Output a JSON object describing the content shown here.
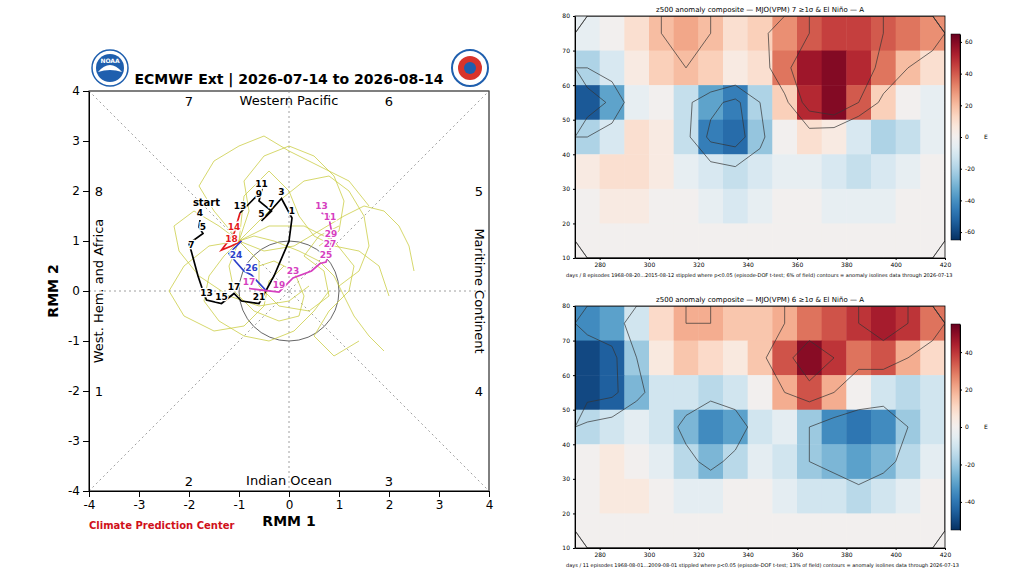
{
  "chart_data": [
    {
      "type": "line",
      "title": "ECMWF Ext | 2026-07-14 to 2026-08-14",
      "x_label": "RMM 1",
      "y_label": "RMM 2",
      "xlim": [
        -4,
        4
      ],
      "ylim": [
        -4,
        4
      ],
      "xticks": [
        -4,
        -3,
        -2,
        -1,
        0,
        1,
        2,
        3,
        4
      ],
      "yticks": [
        -4,
        -3,
        -2,
        -1,
        0,
        1,
        2,
        3,
        4
      ],
      "circle_radius": 1,
      "phase_labels": [
        "1",
        "2",
        "3",
        "4",
        "5",
        "6",
        "7",
        "8"
      ],
      "region_labels": {
        "top": "Western Pacific",
        "bottom": "Indian Ocean",
        "left": "West. Hem. and Africa",
        "right": "Maritime Continent"
      },
      "annotations": [
        {
          "text": "start",
          "x": -1.65,
          "y": 1.7
        }
      ],
      "credit": "Climate Prediction Center",
      "logo_text": "NOAA",
      "series": [
        {
          "color": "#c9cc3f",
          "x": [
            -1.0,
            -0.6,
            -0.2,
            0.3,
            0.8,
            1.2,
            1.5,
            1.6,
            1.4,
            1.0
          ],
          "values": [
            1.0,
            1.4,
            1.8,
            2.2,
            2.3,
            2.0,
            1.5,
            0.9,
            0.4,
            0.1
          ]
        },
        {
          "color": "#c9cc3f",
          "x": [
            -1.0,
            -1.3,
            -1.6,
            -1.7,
            -1.4,
            -0.9,
            -0.4,
            0.1,
            0.5,
            0.8
          ],
          "values": [
            1.0,
            0.7,
            0.3,
            -0.2,
            -0.6,
            -0.9,
            -1.0,
            -0.8,
            -0.4,
            0.0
          ]
        },
        {
          "color": "#c9cc3f",
          "x": [
            -1.0,
            -0.7,
            -0.3,
            0.2,
            0.6,
            0.9,
            1.1,
            1.3,
            1.6,
            1.9
          ],
          "values": [
            1.0,
            1.1,
            1.0,
            0.8,
            0.6,
            0.3,
            -0.1,
            -0.5,
            -0.9,
            -1.2
          ]
        },
        {
          "color": "#c9cc3f",
          "x": [
            -1.0,
            -1.4,
            -1.9,
            -2.3,
            -2.2,
            -1.8,
            -1.2,
            -0.6,
            0.0,
            0.4
          ],
          "values": [
            1.0,
            1.3,
            1.6,
            1.3,
            0.8,
            0.3,
            -0.1,
            -0.3,
            -0.2,
            0.1
          ]
        },
        {
          "color": "#c9cc3f",
          "x": [
            -1.0,
            -0.8,
            -0.9,
            -0.5,
            0.0,
            0.5,
            0.9,
            1.1,
            1.0,
            0.6
          ],
          "values": [
            1.0,
            1.6,
            2.2,
            2.7,
            2.9,
            2.7,
            2.3,
            1.8,
            1.2,
            0.9
          ]
        },
        {
          "color": "#c9cc3f",
          "x": [
            -1.0,
            -0.5,
            0.1,
            0.6,
            1.1,
            1.5,
            1.9,
            2.2,
            2.4,
            2.5
          ],
          "values": [
            1.0,
            0.8,
            0.9,
            1.2,
            1.5,
            1.7,
            1.6,
            1.3,
            0.9,
            0.4
          ]
        },
        {
          "color": "#c9cc3f",
          "x": [
            -1.0,
            -1.2,
            -1.1,
            -0.7,
            -0.2,
            0.2,
            0.3,
            0.1,
            -0.3,
            -0.6
          ],
          "values": [
            1.0,
            0.5,
            0.0,
            -0.4,
            -0.6,
            -0.5,
            -0.1,
            0.4,
            0.6,
            0.5
          ]
        },
        {
          "color": "#c9cc3f",
          "x": [
            -1.0,
            -0.9,
            -0.4,
            0.0,
            0.2,
            0.5,
            0.9,
            1.4,
            1.8,
            2.0
          ],
          "values": [
            1.0,
            1.9,
            2.4,
            2.0,
            1.5,
            1.1,
            0.9,
            0.8,
            0.5,
            -0.1
          ]
        },
        {
          "color": "#c9cc3f",
          "x": [
            -1.0,
            -1.5,
            -1.8,
            -1.5,
            -1.0,
            -0.5,
            0.0,
            0.6,
            1.2,
            1.6
          ],
          "values": [
            1.0,
            1.6,
            2.1,
            2.6,
            2.9,
            3.1,
            2.8,
            2.5,
            2.2,
            1.7
          ]
        },
        {
          "color": "#c9cc3f",
          "x": [
            -1.0,
            -0.6,
            -0.6,
            -0.2,
            0.4,
            0.8,
            0.7,
            0.3,
            0.6,
            1.0
          ],
          "values": [
            1.0,
            0.6,
            0.1,
            -0.3,
            -0.4,
            -0.1,
            0.4,
            0.7,
            1.1,
            1.3
          ]
        },
        {
          "color": "#c9cc3f",
          "x": [
            -1.0,
            -1.6,
            -2.1,
            -2.4,
            -2.1,
            -1.5,
            -0.9,
            -0.5,
            -0.4,
            -0.1
          ],
          "values": [
            1.0,
            0.9,
            0.5,
            0.0,
            -0.5,
            -0.8,
            -0.7,
            -0.3,
            0.2,
            0.5
          ]
        },
        {
          "color": "#c9cc3f",
          "x": [
            -1.0,
            -0.4,
            0.3,
            0.9,
            1.3,
            1.2,
            0.8,
            0.5,
            0.9,
            1.4
          ],
          "values": [
            1.0,
            1.3,
            1.3,
            1.0,
            0.5,
            0.0,
            -0.4,
            -0.9,
            -1.3,
            -1.0
          ]
        },
        {
          "color": "#000000",
          "x": [
            -1.78,
            -1.8,
            -1.72,
            -2.0,
            -1.95,
            -1.82,
            -1.72,
            -1.65,
            -1.35,
            -1.1,
            -0.95,
            -0.6,
            -0.3,
            0.0,
            0.06,
            -0.15,
            -0.55,
            -0.35,
            -0.6,
            -0.55,
            -0.98
          ],
          "values": [
            1.42,
            1.28,
            1.15,
            0.95,
            0.78,
            0.3,
            0.0,
            -0.18,
            -0.25,
            -0.05,
            -0.2,
            -0.25,
            0.3,
            1.0,
            1.46,
            1.85,
            1.4,
            1.6,
            1.8,
            2.0,
            1.56
          ],
          "labels": [
            "4",
            null,
            "5",
            null,
            "7",
            null,
            null,
            "13",
            "15",
            "17",
            null,
            "21",
            null,
            null,
            "1",
            "3",
            "5",
            "7",
            "9",
            "11",
            "13"
          ]
        },
        {
          "color": "#e31a1c",
          "x": [
            -0.98,
            -1.1,
            -1.35,
            -1.15,
            -0.95
          ],
          "values": [
            1.56,
            1.15,
            0.82,
            0.9,
            1.0
          ],
          "labels": [
            null,
            "14",
            null,
            "18",
            null
          ]
        },
        {
          "color": "#2b3fc9",
          "x": [
            -0.95,
            -1.2,
            -1.06,
            -0.9,
            -0.75,
            -0.45
          ],
          "values": [
            1.0,
            0.75,
            0.58,
            0.4,
            0.32,
            0.0
          ],
          "labels": [
            null,
            null,
            "24",
            null,
            "26",
            null
          ]
        },
        {
          "color": "#d63fbf",
          "x": [
            -0.45,
            -0.8,
            -0.2,
            0.08,
            0.45,
            0.62,
            0.74,
            0.82,
            0.84,
            0.85,
            0.82,
            0.8,
            0.65
          ],
          "values": [
            0.0,
            0.05,
            -0.02,
            0.26,
            0.4,
            0.55,
            0.58,
            0.8,
            1.0,
            1.2,
            1.35,
            1.5,
            1.56
          ],
          "labels": [
            null,
            "17",
            "19",
            "23",
            null,
            null,
            "25",
            "27",
            "29",
            null,
            "11",
            null,
            "13"
          ]
        }
      ]
    },
    {
      "type": "heatmap",
      "title": "z500 anomaly composite — MJO(VPM) 7 ≥1σ & El Niño — A",
      "footnote": "days / 8 episodes   1968-08-20...2015-08-12   stippled where p<0.05 (episode-DOF t-test; 6% of field)   contours = anomaly isolines   data through 2026-07-13",
      "xlim": [
        270,
        420
      ],
      "ylim": [
        10,
        80
      ],
      "xticks": [
        280,
        300,
        320,
        340,
        360,
        380,
        400,
        420
      ],
      "yticks": [
        10,
        20,
        30,
        40,
        50,
        60,
        70,
        80
      ],
      "x": [
        275,
        285,
        295,
        305,
        315,
        325,
        335,
        345,
        355,
        365,
        375,
        385,
        395,
        405,
        415
      ],
      "y": [
        75,
        65,
        55,
        45,
        35,
        25,
        15
      ],
      "z": [
        [
          -5,
          0,
          10,
          20,
          25,
          20,
          10,
          15,
          30,
          40,
          45,
          45,
          40,
          35,
          30
        ],
        [
          -20,
          -10,
          5,
          15,
          20,
          15,
          5,
          10,
          35,
          55,
          60,
          50,
          35,
          20,
          10
        ],
        [
          -55,
          -35,
          -5,
          0,
          -15,
          -35,
          -45,
          -20,
          15,
          50,
          60,
          40,
          15,
          0,
          -5
        ],
        [
          -20,
          -10,
          10,
          5,
          -15,
          -45,
          -50,
          -25,
          0,
          10,
          5,
          -10,
          -20,
          -15,
          -5
        ],
        [
          5,
          10,
          10,
          5,
          -5,
          -10,
          -15,
          -10,
          -5,
          -5,
          -10,
          -15,
          -10,
          -5,
          0
        ],
        [
          0,
          5,
          5,
          0,
          0,
          -5,
          -10,
          -5,
          0,
          0,
          -5,
          -5,
          -5,
          0,
          0
        ],
        [
          0,
          0,
          0,
          0,
          0,
          0,
          0,
          0,
          0,
          0,
          0,
          0,
          0,
          0,
          0
        ]
      ],
      "contour_levels": [
        -40,
        -20,
        20,
        40
      ],
      "colorbar": {
        "range": [
          -65,
          65
        ],
        "ticks": [
          -60,
          -40,
          -20,
          0,
          20,
          40,
          60
        ],
        "label": "E"
      }
    },
    {
      "type": "heatmap",
      "title": "z500 anomaly composite — MJO(VPM) 6 ≥1σ & El Niño — A",
      "footnote": "days / 11 episodes   1968-08-01...2009-08-01   stippled where p<0.05 (episode-DOF t-test; 13% of field)   contours = anomaly isolines   data through 2026-07-13",
      "xlim": [
        270,
        420
      ],
      "ylim": [
        10,
        80
      ],
      "xticks": [
        280,
        300,
        320,
        340,
        360,
        380,
        400,
        420
      ],
      "yticks": [
        10,
        20,
        30,
        40,
        50,
        60,
        70,
        80
      ],
      "x": [
        275,
        285,
        295,
        305,
        315,
        325,
        335,
        345,
        355,
        365,
        375,
        385,
        395,
        405,
        415
      ],
      "y": [
        75,
        65,
        55,
        45,
        35,
        25,
        15
      ],
      "z": [
        [
          -35,
          -30,
          -10,
          10,
          20,
          20,
          15,
          15,
          20,
          30,
          35,
          40,
          45,
          40,
          30
        ],
        [
          -50,
          -45,
          -20,
          5,
          15,
          10,
          5,
          15,
          35,
          50,
          40,
          30,
          35,
          20,
          10
        ],
        [
          -50,
          -45,
          -25,
          -10,
          -10,
          -15,
          -10,
          0,
          20,
          35,
          20,
          0,
          -10,
          -15,
          -10
        ],
        [
          -15,
          -10,
          -5,
          -10,
          -25,
          -35,
          -30,
          -10,
          -5,
          -20,
          -35,
          -40,
          -35,
          -20,
          -10
        ],
        [
          0,
          5,
          0,
          -5,
          -15,
          -25,
          -15,
          -5,
          -10,
          -20,
          -25,
          -30,
          -25,
          -15,
          -5
        ],
        [
          0,
          5,
          5,
          0,
          -5,
          -5,
          0,
          0,
          -5,
          -10,
          -10,
          -15,
          -10,
          -5,
          0
        ],
        [
          0,
          0,
          0,
          0,
          0,
          0,
          0,
          0,
          0,
          0,
          0,
          0,
          0,
          0,
          0
        ]
      ],
      "contour_levels": [
        -40,
        -20,
        20,
        40
      ],
      "colorbar": {
        "range": [
          -55,
          55
        ],
        "ticks": [
          -40,
          -20,
          0,
          20,
          40
        ],
        "label": "E"
      }
    }
  ]
}
